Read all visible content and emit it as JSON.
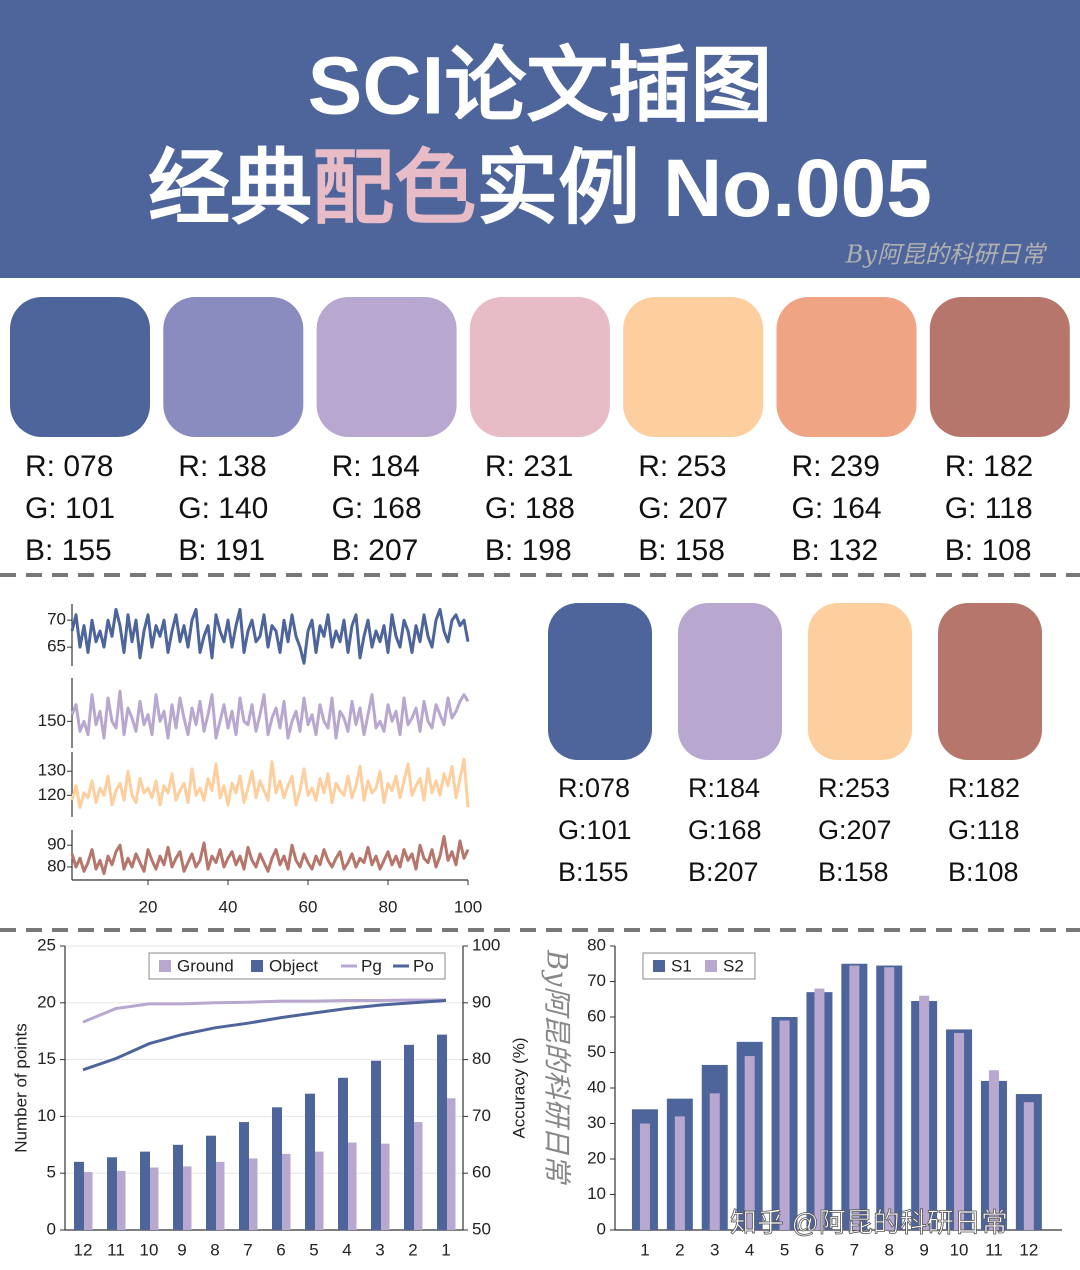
{
  "header": {
    "title_line1": "SCI论文插图",
    "title_line2": [
      "经典",
      "配色",
      "实例 No.005"
    ],
    "watermark": "By阿昆的科研日常"
  },
  "palette": [
    {
      "color": "#4e659b",
      "r": "R: 078",
      "g": "G: 101",
      "b": "B: 155"
    },
    {
      "color": "#8a8cbf",
      "r": "R: 138",
      "g": "G: 140",
      "b": "B: 191"
    },
    {
      "color": "#b8a8cf",
      "r": "R: 184",
      "g": "G: 168",
      "b": "B: 207"
    },
    {
      "color": "#e7bcc6",
      "r": "R: 231",
      "g": "G: 188",
      "b": "B: 198"
    },
    {
      "color": "#fdcf9e",
      "r": "R: 253",
      "g": "G: 207",
      "b": "B: 158"
    },
    {
      "color": "#efa484",
      "r": "R: 239",
      "g": "G: 164",
      "b": "B: 132"
    },
    {
      "color": "#b6766c",
      "r": "R: 182",
      "g": "G: 118",
      "b": "B: 108"
    }
  ],
  "palette2": [
    {
      "color": "#4e659b",
      "r": "R:078",
      "g": "G:101",
      "b": "B:155"
    },
    {
      "color": "#b8a8cf",
      "r": "R:184",
      "g": "G:168",
      "b": "B:207"
    },
    {
      "color": "#fdcf9e",
      "r": "R:253",
      "g": "G:207",
      "b": "B:158"
    },
    {
      "color": "#b6766c",
      "r": "R:182",
      "g": "G:118",
      "b": "B:108"
    }
  ],
  "watermarks": {
    "vertical": "By阿昆的科研日常",
    "zhihu": "知乎 @阿昆的科研日常"
  },
  "chart_data": [
    {
      "type": "line",
      "x": [
        1,
        2,
        3,
        4,
        5,
        6,
        7,
        8,
        9,
        10,
        11,
        12,
        13,
        14,
        15,
        16,
        17,
        18,
        19,
        20,
        21,
        22,
        23,
        24,
        25,
        26,
        27,
        28,
        29,
        30,
        31,
        32,
        33,
        34,
        35,
        36,
        37,
        38,
        39,
        40,
        41,
        42,
        43,
        44,
        45,
        46,
        47,
        48,
        49,
        50,
        51,
        52,
        53,
        54,
        55,
        56,
        57,
        58,
        59,
        60,
        61,
        62,
        63,
        64,
        65,
        66,
        67,
        68,
        69,
        70,
        71,
        72,
        73,
        74,
        75,
        76,
        77,
        78,
        79,
        80,
        81,
        82,
        83,
        84,
        85,
        86,
        87,
        88,
        89,
        90,
        91,
        92,
        93,
        94,
        95,
        96,
        97,
        98,
        99,
        100
      ],
      "xlim": [
        1,
        100
      ],
      "xticks": [
        20,
        40,
        60,
        80,
        100
      ],
      "series": [
        {
          "color": "#4e659b",
          "ylim": [
            61.5,
            73
          ],
          "yticks": [
            65,
            70
          ],
          "values": [
            68,
            71,
            65,
            69,
            64,
            70,
            66,
            68,
            65,
            70,
            67,
            72,
            69,
            64,
            71,
            66,
            70,
            63,
            68,
            71,
            65,
            69,
            67,
            70,
            64,
            68,
            71,
            66,
            69,
            65,
            70,
            72,
            64,
            67,
            69,
            63,
            71,
            68,
            66,
            70,
            65,
            69,
            72,
            64,
            68,
            70,
            66,
            67,
            71,
            65,
            69,
            68,
            64,
            70,
            66,
            71,
            67,
            65,
            62,
            68,
            70,
            64,
            69,
            67,
            71,
            65,
            68,
            66,
            70,
            64,
            69,
            71,
            63,
            67,
            70,
            65,
            68,
            66,
            69,
            64,
            71,
            67,
            65,
            70,
            68,
            64,
            69,
            66,
            71,
            67,
            65,
            70,
            72,
            68,
            66,
            70,
            71,
            69,
            70,
            66
          ]
        },
        {
          "color": "#b8a8cf",
          "ylim": [
            142,
            163
          ],
          "yticks": [
            150
          ],
          "values": [
            152,
            155,
            147,
            150,
            146,
            158,
            149,
            153,
            145,
            157,
            150,
            148,
            159,
            146,
            154,
            151,
            147,
            156,
            149,
            152,
            146,
            158,
            150,
            153,
            145,
            155,
            148,
            157,
            151,
            146,
            154,
            149,
            156,
            147,
            152,
            158,
            145,
            150,
            155,
            148,
            153,
            146,
            157,
            150,
            149,
            155,
            147,
            152,
            158,
            146,
            151,
            154,
            148,
            156,
            145,
            150,
            153,
            147,
            157,
            149,
            152,
            146,
            155,
            150,
            148,
            157,
            145,
            153,
            151,
            147,
            156,
            149,
            154,
            146,
            152,
            158,
            148,
            150,
            147,
            155,
            150,
            153,
            146,
            157,
            149,
            151,
            154,
            147,
            156,
            150,
            148,
            155,
            152,
            149,
            157,
            151,
            153,
            156,
            158,
            156
          ]
        },
        {
          "color": "#fdcf9e",
          "ylim": [
            111,
            138
          ],
          "yticks": [
            120,
            130
          ],
          "values": [
            118,
            124,
            115,
            121,
            119,
            126,
            117,
            123,
            120,
            128,
            116,
            122,
            125,
            118,
            130,
            120,
            117,
            127,
            121,
            123,
            119,
            126,
            116,
            124,
            121,
            129,
            118,
            122,
            125,
            117,
            131,
            120,
            123,
            118,
            127,
            122,
            133,
            119,
            124,
            116,
            125,
            121,
            128,
            117,
            123,
            130,
            119,
            126,
            122,
            118,
            134,
            121,
            126,
            119,
            124,
            128,
            116,
            122,
            131,
            120,
            123,
            118,
            127,
            121,
            129,
            117,
            125,
            122,
            120,
            128,
            119,
            124,
            132,
            118,
            126,
            121,
            123,
            130,
            117,
            125,
            122,
            128,
            119,
            126,
            133,
            120,
            124,
            127,
            118,
            131,
            121,
            126,
            120,
            129,
            124,
            132,
            119,
            127,
            135,
            115
          ]
        },
        {
          "color": "#b6766c",
          "ylim": [
            74,
            97
          ],
          "yticks": [
            80,
            90
          ],
          "values": [
            86,
            80,
            84,
            78,
            82,
            88,
            79,
            83,
            77,
            85,
            81,
            87,
            90,
            79,
            84,
            80,
            86,
            82,
            78,
            88,
            83,
            79,
            85,
            81,
            89,
            80,
            84,
            87,
            78,
            82,
            86,
            80,
            83,
            91,
            79,
            85,
            82,
            88,
            80,
            84,
            87,
            81,
            85,
            79,
            89,
            83,
            80,
            86,
            82,
            78,
            84,
            88,
            81,
            85,
            79,
            90,
            83,
            80,
            86,
            82,
            79,
            85,
            81,
            88,
            83,
            80,
            84,
            87,
            79,
            82,
            86,
            80,
            84,
            82,
            89,
            81,
            85,
            79,
            83,
            87,
            81,
            85,
            80,
            88,
            83,
            86,
            79,
            90,
            84,
            82,
            88,
            80,
            85,
            94,
            83,
            87,
            81,
            92,
            84,
            88
          ]
        }
      ]
    },
    {
      "type": "bar",
      "categories": [
        "12",
        "11",
        "10",
        "9",
        "8",
        "7",
        "6",
        "5",
        "4",
        "3",
        "2",
        "1"
      ],
      "ylabel": "Number of points",
      "y2label": "Accuracy (%)",
      "ylim": [
        0,
        25
      ],
      "yticks": [
        0,
        5,
        10,
        15,
        20,
        25
      ],
      "y2lim": [
        50,
        100
      ],
      "y2ticks": [
        50,
        60,
        70,
        80,
        90,
        100
      ],
      "grid": true,
      "legend": "upper right",
      "series": [
        {
          "name": "Ground",
          "color": "#b8a8cf",
          "values": [
            5.1,
            5.2,
            5.5,
            5.6,
            6.0,
            6.3,
            6.7,
            6.9,
            7.7,
            7.6,
            9.5,
            11.6
          ]
        },
        {
          "name": "Object",
          "color": "#4e659b",
          "values": [
            6.0,
            6.4,
            6.9,
            7.5,
            8.3,
            9.5,
            10.8,
            12.0,
            13.4,
            14.9,
            16.3,
            17.2
          ]
        },
        {
          "name": "Pg",
          "type": "line",
          "axis": "y2",
          "color": "#b8a8cf",
          "values": [
            86.6,
            89,
            89.8,
            89.8,
            90,
            90.1,
            90.3,
            90.3,
            90.4,
            90.4,
            90.5,
            90.5
          ]
        },
        {
          "name": "Po",
          "type": "line",
          "axis": "y2",
          "color": "#4e659b",
          "values": [
            78.2,
            80.2,
            82.8,
            84.4,
            85.6,
            86.4,
            87.4,
            88.2,
            89,
            89.6,
            90,
            90.4
          ]
        }
      ]
    },
    {
      "type": "bar",
      "categories": [
        "1",
        "2",
        "3",
        "4",
        "5",
        "6",
        "7",
        "8",
        "9",
        "10",
        "11",
        "12"
      ],
      "ylim": [
        0,
        80
      ],
      "yticks": [
        0,
        10,
        20,
        30,
        40,
        50,
        60,
        70,
        80
      ],
      "grid": false,
      "legend": "upper left",
      "series": [
        {
          "name": "S1",
          "color": "#4e659b",
          "values": [
            34,
            37,
            46.5,
            53,
            60,
            67,
            75,
            74.5,
            64.5,
            56.5,
            42,
            38.3
          ]
        },
        {
          "name": "S2",
          "color": "#b8a8cf",
          "values": [
            30,
            32,
            38.5,
            49,
            59,
            68,
            74.5,
            74,
            66,
            55.5,
            45,
            36
          ]
        }
      ]
    }
  ]
}
